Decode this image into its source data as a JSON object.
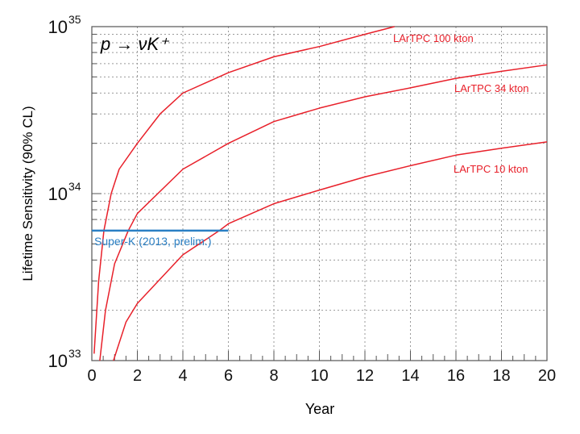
{
  "chart_data": {
    "type": "line",
    "title": "",
    "annotation": "p → νK⁺",
    "xlabel": "Year",
    "ylabel": "Lifetime Sensitivity (90% CL)",
    "xlim": [
      0,
      20
    ],
    "ylim": [
      1e+33,
      1e+35
    ],
    "yscale": "log",
    "grid": true,
    "xticks": [
      "0",
      "2",
      "4",
      "6",
      "8",
      "10",
      "12",
      "14",
      "16",
      "18",
      "20"
    ],
    "yticks": [
      {
        "base": "10",
        "exp": "33"
      },
      {
        "base": "10",
        "exp": "34"
      },
      {
        "base": "10",
        "exp": "35"
      }
    ],
    "series": [
      {
        "name": "LArTPC 100 kton",
        "color": "#e8202a",
        "x": [
          0.1,
          0.3,
          0.53,
          0.85,
          1.2,
          2,
          3,
          4,
          6,
          8,
          10,
          12,
          13.3
        ],
        "y": [
          1.1e+33,
          3e+33,
          6e+33,
          1e+34,
          1.4e+34,
          2e+34,
          3e+34,
          4e+34,
          5.3e+34,
          6.6e+34,
          7.6e+34,
          9e+34,
          1e+35
        ]
      },
      {
        "name": "LArTPC 34 kton",
        "color": "#e8202a",
        "x": [
          0.35,
          0.6,
          1,
          1.6,
          2,
          4,
          6,
          8,
          10,
          12,
          14,
          16,
          18,
          20
        ],
        "y": [
          1e+33,
          2e+33,
          3.8e+33,
          6e+33,
          7.6e+33,
          1.4e+34,
          2e+34,
          2.7e+34,
          3.25e+34,
          3.8e+34,
          4.3e+34,
          4.9e+34,
          5.4e+34,
          5.9e+34
        ]
      },
      {
        "name": "LArTPC 10 kton",
        "color": "#e8202a",
        "x": [
          0.95,
          1.5,
          2,
          4,
          5.6,
          6,
          8,
          10,
          12,
          14,
          16,
          18,
          20
        ],
        "y": [
          1e+33,
          1.7e+33,
          2.2e+33,
          4.3e+33,
          6e+33,
          6.6e+33,
          8.7e+33,
          1.05e+34,
          1.26e+34,
          1.47e+34,
          1.7e+34,
          1.87e+34,
          2.04e+34
        ]
      },
      {
        "name": "Super-K (2013, prelim.)",
        "color": "#2a7fc4",
        "x": [
          0,
          6
        ],
        "y": [
          6e+33,
          6e+33
        ]
      }
    ]
  }
}
